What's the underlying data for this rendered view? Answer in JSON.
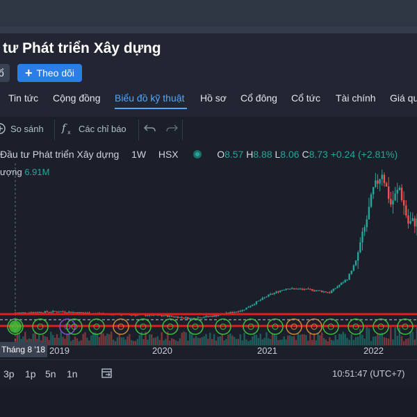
{
  "page": {
    "title": "tư Phát triển Xây dựng",
    "left_chip": "ổ",
    "follow_button": "Theo dõi"
  },
  "tabs": [
    {
      "label": "Tin tức",
      "active": false
    },
    {
      "label": "Cộng đồng",
      "active": false
    },
    {
      "label": "Biểu đồ kỹ thuật",
      "active": true
    },
    {
      "label": "Hồ sơ",
      "active": false
    },
    {
      "label": "Cổ đông",
      "active": false
    },
    {
      "label": "Cổ tức",
      "active": false
    },
    {
      "label": "Tài chính",
      "active": false
    },
    {
      "label": "Giá qu",
      "active": false
    }
  ],
  "toolbar": {
    "compare": "So sánh",
    "indicators": "Các chỉ báo",
    "compare_icon": "plus-circle-icon",
    "indicators_icon": "fx-icon",
    "undo_icon": "undo-icon",
    "redo_icon": "redo-icon"
  },
  "legend": {
    "symbol_name": "Đầu tư Phát triển Xây dựng",
    "interval": "1W",
    "exchange": "HSX",
    "o_label": "O",
    "o_value": "8.57",
    "h_label": "H",
    "h_value": "8.88",
    "l_label": "L",
    "l_value": "8.06",
    "c_label": "C",
    "c_value": "8.73",
    "change": "+0.24 (+2.81%)",
    "volume_label": "ượng",
    "volume_value": "6.91M"
  },
  "x_axis": {
    "date_tooltip": "Tháng 8 '18",
    "ticks": [
      "2019",
      "2020",
      "2021",
      "2022"
    ]
  },
  "bottombar": {
    "ranges": [
      "3p",
      "1p",
      "5n",
      "1n"
    ],
    "clock": "10:51:47 (UTC+7)",
    "goto_icon": "calendar-goto-icon"
  },
  "colors": {
    "up": "#26a69a",
    "down": "#ef5350",
    "accent": "#2d7de6",
    "active_tab": "#53a7ff",
    "support_line": "#e01e1e"
  },
  "chart_data": {
    "type": "candlestick",
    "x_ticks": [
      "2019",
      "2020",
      "2021",
      "2022"
    ],
    "weekly_close_approx": [
      {
        "t": "2018-08",
        "close": 2.0
      },
      {
        "t": "2019-01",
        "close": 2.1
      },
      {
        "t": "2019-07",
        "close": 1.9
      },
      {
        "t": "2020-01",
        "close": 1.8
      },
      {
        "t": "2020-04",
        "close": 1.6
      },
      {
        "t": "2020-07",
        "close": 1.8
      },
      {
        "t": "2020-10",
        "close": 2.2
      },
      {
        "t": "2021-01",
        "close": 3.3
      },
      {
        "t": "2021-03",
        "close": 3.8
      },
      {
        "t": "2021-06",
        "close": 3.7
      },
      {
        "t": "2021-08",
        "close": 3.5
      },
      {
        "t": "2021-10",
        "close": 4.5
      },
      {
        "t": "2021-11",
        "close": 5.8
      },
      {
        "t": "2021-12",
        "close": 8.2
      },
      {
        "t": "2022-01",
        "close": 11.0
      },
      {
        "t": "2022-02",
        "close": 12.4
      },
      {
        "t": "2022-03",
        "close": 10.0
      },
      {
        "t": "2022-04",
        "close": 11.2
      },
      {
        "t": "2022-05",
        "close": 8.6
      },
      {
        "t": "2022-06",
        "close": 8.73
      }
    ]
  }
}
